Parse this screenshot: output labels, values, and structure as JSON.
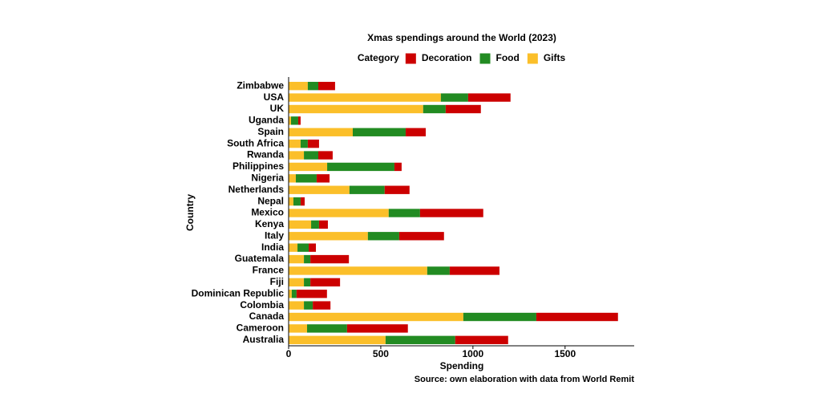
{
  "chart_data": {
    "type": "stacked_barh",
    "title": "Xmas spendings around the World (2023)",
    "legend_title": "Category",
    "xlabel": "Spending",
    "ylabel": "Country",
    "caption": "Source: own elaboration with data from World Remit",
    "categories": [
      "Australia",
      "Cameroon",
      "Canada",
      "Colombia",
      "Dominican Republic",
      "Fiji",
      "France",
      "Guatemala",
      "India",
      "Italy",
      "Kenya",
      "Mexico",
      "Nepal",
      "Netherlands",
      "Nigeria",
      "Philippines",
      "Rwanda",
      "South Africa",
      "Spain",
      "Uganda",
      "UK",
      "USA",
      "Zimbabwe"
    ],
    "series": [
      {
        "name": "Decoration",
        "color": "#cc0000",
        "values": [
          287,
          330,
          443,
          96,
          165,
          161,
          270,
          209,
          39,
          243,
          48,
          343,
          22,
          135,
          70,
          39,
          78,
          61,
          109,
          13,
          191,
          230,
          91
        ]
      },
      {
        "name": "Food",
        "color": "#228b22",
        "values": [
          378,
          217,
          396,
          48,
          26,
          35,
          122,
          35,
          61,
          170,
          43,
          170,
          39,
          191,
          113,
          365,
          78,
          39,
          287,
          39,
          122,
          148,
          57
        ]
      },
      {
        "name": "Gifts",
        "color": "#fbbf2a",
        "values": [
          526,
          100,
          948,
          83,
          17,
          83,
          752,
          83,
          48,
          430,
          122,
          543,
          26,
          330,
          39,
          209,
          83,
          65,
          348,
          13,
          730,
          826,
          104
        ]
      }
    ],
    "xlim": [
      0,
      1875
    ],
    "xticks": [
      0,
      500,
      1000,
      1500
    ],
    "legend": "top"
  }
}
